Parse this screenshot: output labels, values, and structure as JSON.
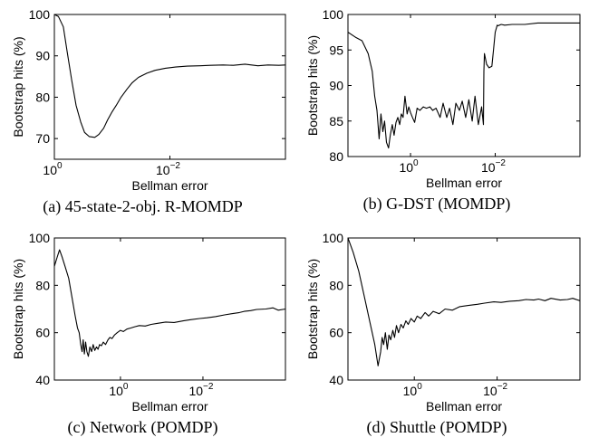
{
  "chart_data": [
    {
      "type": "line",
      "panel": "a",
      "caption": "(a) 45-state-2-obj. R-MOMDP",
      "xlabel": "Bellman error",
      "ylabel": "Bootstrap hits (%)",
      "xscale": "log-reversed",
      "xlim": [
        1.0,
        0.0001
      ],
      "ylim": [
        65,
        100
      ],
      "yticks": [
        70,
        80,
        90,
        100
      ],
      "xticks": [
        {
          "value": 1,
          "label": "10",
          "exp": "0"
        },
        {
          "value": 0.01,
          "label": "10",
          "exp": "−2"
        }
      ],
      "series": [
        {
          "x": [
            1.0,
            0.85,
            0.7,
            0.6,
            0.5,
            0.42,
            0.35,
            0.3,
            0.25,
            0.2,
            0.17,
            0.14,
            0.12,
            0.1,
            0.085,
            0.07,
            0.055,
            0.045,
            0.035,
            0.025,
            0.018,
            0.012,
            0.008,
            0.005,
            0.003,
            0.002,
            0.0012,
            0.0008,
            0.0005,
            0.0003,
            0.0002,
            0.00013,
            0.0001
          ],
          "values": [
            100,
            99.5,
            97,
            91,
            84,
            78,
            74,
            71.5,
            70.5,
            70.3,
            71,
            72.5,
            74.5,
            76.5,
            78,
            80,
            82,
            83.5,
            84.8,
            85.8,
            86.5,
            87,
            87.3,
            87.5,
            87.6,
            87.7,
            87.8,
            87.7,
            88,
            87.6,
            87.8,
            87.7,
            87.8
          ]
        }
      ]
    },
    {
      "type": "line",
      "panel": "b",
      "caption": "(b) G-DST (MOMDP)",
      "xlabel": "Bellman error",
      "ylabel": "Bootstrap hits (%)",
      "xscale": "log-reversed",
      "xlim": [
        30,
        0.0001
      ],
      "ylim": [
        80,
        100
      ],
      "yticks": [
        80,
        85,
        90,
        95,
        100
      ],
      "xticks": [
        {
          "value": 1,
          "label": "10",
          "exp": "0"
        },
        {
          "value": 0.01,
          "label": "10",
          "exp": "−2"
        }
      ],
      "series": [
        {
          "x": [
            30,
            20,
            14,
            10,
            8,
            7,
            6.2,
            5.5,
            5,
            4.5,
            4.1,
            3.7,
            3.3,
            3.0,
            2.7,
            2.45,
            2.2,
            2.0,
            1.8,
            1.65,
            1.5,
            1.35,
            1.2,
            1.1,
            1.0,
            0.9,
            0.8,
            0.7,
            0.6,
            0.5,
            0.42,
            0.35,
            0.3,
            0.25,
            0.2,
            0.17,
            0.14,
            0.12,
            0.1,
            0.085,
            0.07,
            0.06,
            0.05,
            0.042,
            0.035,
            0.03,
            0.025,
            0.021,
            0.019,
            0.0185,
            0.018,
            0.016,
            0.014,
            0.012,
            0.011,
            0.01,
            0.009,
            0.0085,
            0.008,
            0.0072,
            0.006,
            0.004,
            0.002,
            0.001,
            0.0005,
            0.0002,
            0.0001
          ],
          "values": [
            97.5,
            96.8,
            96.3,
            94.5,
            92,
            88.5,
            86.5,
            82.5,
            86,
            83.5,
            85,
            82,
            81.2,
            83,
            84.5,
            83,
            84.8,
            85.5,
            84.5,
            86,
            85.5,
            88.5,
            86,
            87,
            86.2,
            85.5,
            84.8,
            86.8,
            86.5,
            87,
            86.8,
            87,
            86.5,
            86.8,
            85.5,
            87.5,
            85.5,
            86.8,
            84.5,
            87.5,
            86.5,
            87.8,
            85.5,
            88,
            85,
            88.5,
            84.5,
            87,
            84.5,
            92,
            94.5,
            93,
            92.5,
            92.7,
            95,
            97.5,
            98.5,
            98.4,
            98.5,
            98.6,
            98.5,
            98.6,
            98.6,
            98.8,
            98.8,
            98.8,
            98.8
          ]
        }
      ]
    },
    {
      "type": "line",
      "panel": "c",
      "caption": "(c) Network (POMDP)",
      "xlabel": "Bellman error",
      "ylabel": "Bootstrap hits (%)",
      "xscale": "log-reversed",
      "xlim": [
        40,
        0.0001
      ],
      "ylim": [
        40,
        100
      ],
      "yticks": [
        40,
        60,
        80,
        100
      ],
      "xticks": [
        {
          "value": 1,
          "label": "10",
          "exp": "0"
        },
        {
          "value": 0.01,
          "label": "10",
          "exp": "−2"
        }
      ],
      "series": [
        {
          "x": [
            40,
            34,
            30,
            26,
            22,
            18,
            15,
            12.5,
            11,
            10,
            9.2,
            8.5,
            8,
            7.5,
            7,
            6.5,
            6,
            5.5,
            5,
            4.6,
            4.2,
            3.8,
            3.5,
            3.2,
            2.9,
            2.6,
            2.3,
            2.0,
            1.8,
            1.6,
            1.4,
            1.2,
            1.0,
            0.85,
            0.7,
            0.55,
            0.45,
            0.35,
            0.25,
            0.18,
            0.12,
            0.08,
            0.05,
            0.03,
            0.02,
            0.012,
            0.008,
            0.005,
            0.003,
            0.002,
            0.0013,
            0.001,
            0.0007,
            0.0005,
            0.0003,
            0.0002,
            0.00015,
            0.0001
          ],
          "values": [
            88,
            92,
            95,
            92,
            88,
            83,
            75,
            67,
            62,
            60,
            55,
            52,
            57,
            51,
            56,
            52,
            50,
            54,
            52,
            55,
            52.5,
            54,
            53,
            55,
            54.5,
            56,
            55,
            57,
            58,
            57.5,
            59,
            60,
            61,
            60.5,
            61.5,
            62,
            62.5,
            63,
            62.8,
            63.5,
            64,
            64.5,
            64.3,
            65,
            65.5,
            66,
            66.3,
            66.8,
            67.5,
            68,
            68.5,
            69,
            69.3,
            69.8,
            70,
            70.5,
            69.5,
            70
          ]
        }
      ]
    },
    {
      "type": "line",
      "panel": "d",
      "caption": "(d) Shuttle (POMDP)",
      "xlabel": "Bellman error",
      "ylabel": "Bootstrap hits (%)",
      "xscale": "log-reversed",
      "xlim": [
        40,
        0.0001
      ],
      "ylim": [
        40,
        100
      ],
      "yticks": [
        40,
        60,
        80,
        100
      ],
      "xticks": [
        {
          "value": 1,
          "label": "10",
          "exp": "0"
        },
        {
          "value": 0.01,
          "label": "10",
          "exp": "−2"
        }
      ],
      "series": [
        {
          "x": [
            40,
            30,
            22,
            16,
            12,
            9,
            7.5,
            6.5,
            6,
            5.5,
            5,
            4.5,
            4.1,
            3.7,
            3.3,
            3.0,
            2.7,
            2.4,
            2.1,
            1.85,
            1.6,
            1.4,
            1.2,
            1.0,
            0.85,
            0.7,
            0.55,
            0.45,
            0.35,
            0.25,
            0.18,
            0.12,
            0.08,
            0.05,
            0.03,
            0.02,
            0.012,
            0.008,
            0.005,
            0.003,
            0.002,
            0.0013,
            0.001,
            0.0007,
            0.0005,
            0.0003,
            0.0002,
            0.00015,
            0.0001
          ],
          "values": [
            100,
            94,
            86,
            75,
            65,
            55,
            46,
            52,
            58,
            55,
            60,
            53,
            59,
            57,
            61,
            58,
            63,
            60,
            63.5,
            62,
            65,
            63.5,
            66,
            64.5,
            67,
            66,
            68.5,
            67,
            69,
            68,
            70,
            69.5,
            71,
            71.5,
            72,
            72.5,
            73,
            72.8,
            73.3,
            73.5,
            74,
            73.8,
            74.2,
            73.5,
            74.5,
            73.8,
            74,
            74.5,
            73.5
          ]
        }
      ]
    }
  ]
}
